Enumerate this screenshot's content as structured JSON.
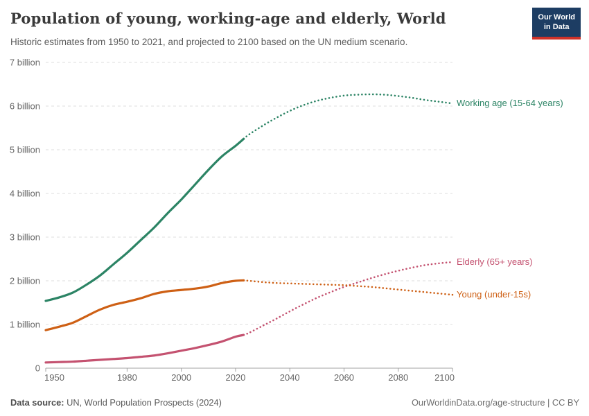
{
  "header": {
    "title": "Population of young, working-age and elderly, World",
    "subtitle": "Historic estimates from 1950 to 2021, and projected to 2100 based on the UN medium scenario.",
    "logo_line1": "Our World",
    "logo_line2": "in Data",
    "logo_bg": "#1d3d63",
    "logo_accent": "#cf3229"
  },
  "footer": {
    "source_label": "Data source:",
    "source_text": " UN, World Population Prospects (2024)",
    "citation_link": "OurWorldinData.org/age-structure",
    "citation_separator": " | ",
    "citation_license": "CC BY"
  },
  "chart_data": {
    "type": "line",
    "title": "Population of young, working-age and elderly, World",
    "xlabel": "",
    "ylabel": "",
    "x_range": [
      1950,
      2100
    ],
    "y_range": [
      0,
      7
    ],
    "grid": true,
    "legend_position": "end-of-line-labels",
    "projection_start_year": 2023,
    "x_ticks": [
      1950,
      1980,
      2000,
      2020,
      2040,
      2060,
      2080,
      2100
    ],
    "y_ticks": [
      {
        "value": 0,
        "label": "0"
      },
      {
        "value": 1,
        "label": "1 billion"
      },
      {
        "value": 2,
        "label": "2 billion"
      },
      {
        "value": 3,
        "label": "3 billion"
      },
      {
        "value": 4,
        "label": "4 billion"
      },
      {
        "value": 5,
        "label": "5 billion"
      },
      {
        "value": 6,
        "label": "6 billion"
      },
      {
        "value": 7,
        "label": "7 billion"
      }
    ],
    "unit": "billion people",
    "series": [
      {
        "name": "Working age (15-64 years)",
        "color": "#2c8465",
        "points": [
          [
            1950,
            1.54
          ],
          [
            1955,
            1.62
          ],
          [
            1960,
            1.73
          ],
          [
            1965,
            1.91
          ],
          [
            1970,
            2.12
          ],
          [
            1975,
            2.38
          ],
          [
            1980,
            2.64
          ],
          [
            1985,
            2.93
          ],
          [
            1990,
            3.22
          ],
          [
            1995,
            3.55
          ],
          [
            2000,
            3.86
          ],
          [
            2005,
            4.2
          ],
          [
            2010,
            4.54
          ],
          [
            2015,
            4.85
          ],
          [
            2020,
            5.09
          ],
          [
            2023,
            5.25
          ],
          [
            2025,
            5.35
          ],
          [
            2030,
            5.55
          ],
          [
            2035,
            5.73
          ],
          [
            2040,
            5.89
          ],
          [
            2045,
            6.02
          ],
          [
            2050,
            6.12
          ],
          [
            2055,
            6.19
          ],
          [
            2060,
            6.24
          ],
          [
            2065,
            6.26
          ],
          [
            2070,
            6.27
          ],
          [
            2075,
            6.26
          ],
          [
            2080,
            6.23
          ],
          [
            2085,
            6.19
          ],
          [
            2090,
            6.14
          ],
          [
            2095,
            6.1
          ],
          [
            2100,
            6.06
          ]
        ]
      },
      {
        "name": "Elderly (65+ years)",
        "color": "#c4527000",
        "points": []
      }
    ]
  }
}
